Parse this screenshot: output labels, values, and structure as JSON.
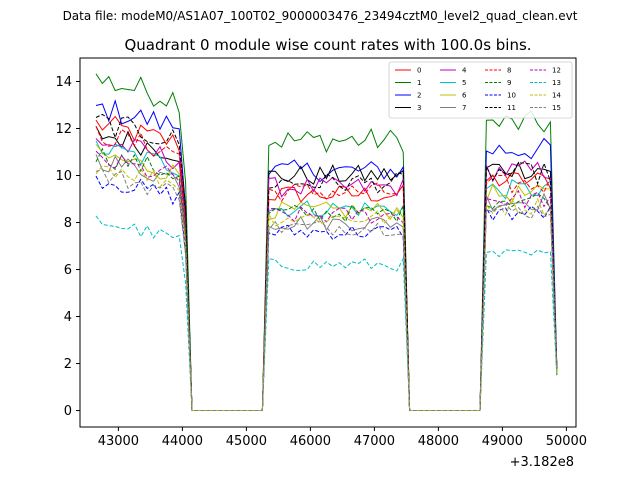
{
  "header": {
    "file_label": "Data file: modeM0/AS1A07_100T02_9000003476_23494cztM0_level2_quad_clean.evt"
  },
  "chart_data": {
    "type": "line",
    "title": "Quadrant 0 module wise count rates with 100.0s bins.",
    "xlabel": "",
    "ylabel": "",
    "x_offset_label": "+3.182e8",
    "xlim": [
      42400,
      50150
    ],
    "ylim": [
      -0.7,
      15.0
    ],
    "x_ticks": [
      43000,
      44000,
      45000,
      46000,
      47000,
      48000,
      49000,
      50000
    ],
    "x_tick_labels": [
      "43000",
      "44000",
      "45000",
      "46000",
      "47000",
      "48000",
      "49000",
      "50000"
    ],
    "y_ticks": [
      0,
      2,
      4,
      6,
      8,
      10,
      12,
      14
    ],
    "y_tick_labels": [
      "0",
      "2",
      "4",
      "6",
      "8",
      "10",
      "12",
      "14"
    ],
    "legend_position": "top-right",
    "segments": [
      {
        "start": 42650,
        "end": 44050
      },
      {
        "start": 45350,
        "end": 47500
      },
      {
        "start": 48700,
        "end": 49850
      }
    ],
    "series": [
      {
        "name": "0",
        "color": "#ff0000",
        "dash": false,
        "levels": [
          11.3,
          9.2,
          9.8
        ]
      },
      {
        "name": "1",
        "color": "#008000",
        "dash": false,
        "levels": [
          13.2,
          11.5,
          12.2
        ]
      },
      {
        "name": "2",
        "color": "#0000ff",
        "dash": false,
        "levels": [
          12.0,
          10.2,
          11.1
        ]
      },
      {
        "name": "3",
        "color": "#000000",
        "dash": false,
        "levels": [
          10.9,
          10.0,
          10.3
        ]
      },
      {
        "name": "4",
        "color": "#bf00bf",
        "dash": false,
        "levels": [
          10.6,
          9.5,
          10.2
        ]
      },
      {
        "name": "5",
        "color": "#00bfbf",
        "dash": false,
        "levels": [
          10.3,
          8.6,
          9.4
        ]
      },
      {
        "name": "6",
        "color": "#bfbf00",
        "dash": false,
        "levels": [
          10.0,
          8.5,
          9.2
        ]
      },
      {
        "name": "7",
        "color": "#808080",
        "dash": false,
        "levels": [
          9.8,
          8.0,
          8.9
        ]
      },
      {
        "name": "8",
        "color": "#ff0000",
        "dash": true,
        "levels": [
          10.9,
          9.3,
          9.6
        ]
      },
      {
        "name": "9",
        "color": "#008000",
        "dash": true,
        "levels": [
          10.0,
          8.4,
          9.0
        ]
      },
      {
        "name": "10",
        "color": "#0000ff",
        "dash": true,
        "levels": [
          9.0,
          7.6,
          8.4
        ]
      },
      {
        "name": "11",
        "color": "#000000",
        "dash": true,
        "levels": [
          11.4,
          9.7,
          10.1
        ]
      },
      {
        "name": "12",
        "color": "#bf00bf",
        "dash": true,
        "levels": [
          9.8,
          8.3,
          9.0
        ]
      },
      {
        "name": "13",
        "color": "#00bfbf",
        "dash": true,
        "levels": [
          7.2,
          6.2,
          6.6
        ]
      },
      {
        "name": "14",
        "color": "#bfbf00",
        "dash": true,
        "levels": [
          9.6,
          8.2,
          8.7
        ]
      },
      {
        "name": "15",
        "color": "#808080",
        "dash": true,
        "levels": [
          9.2,
          7.8,
          8.5
        ]
      }
    ]
  }
}
